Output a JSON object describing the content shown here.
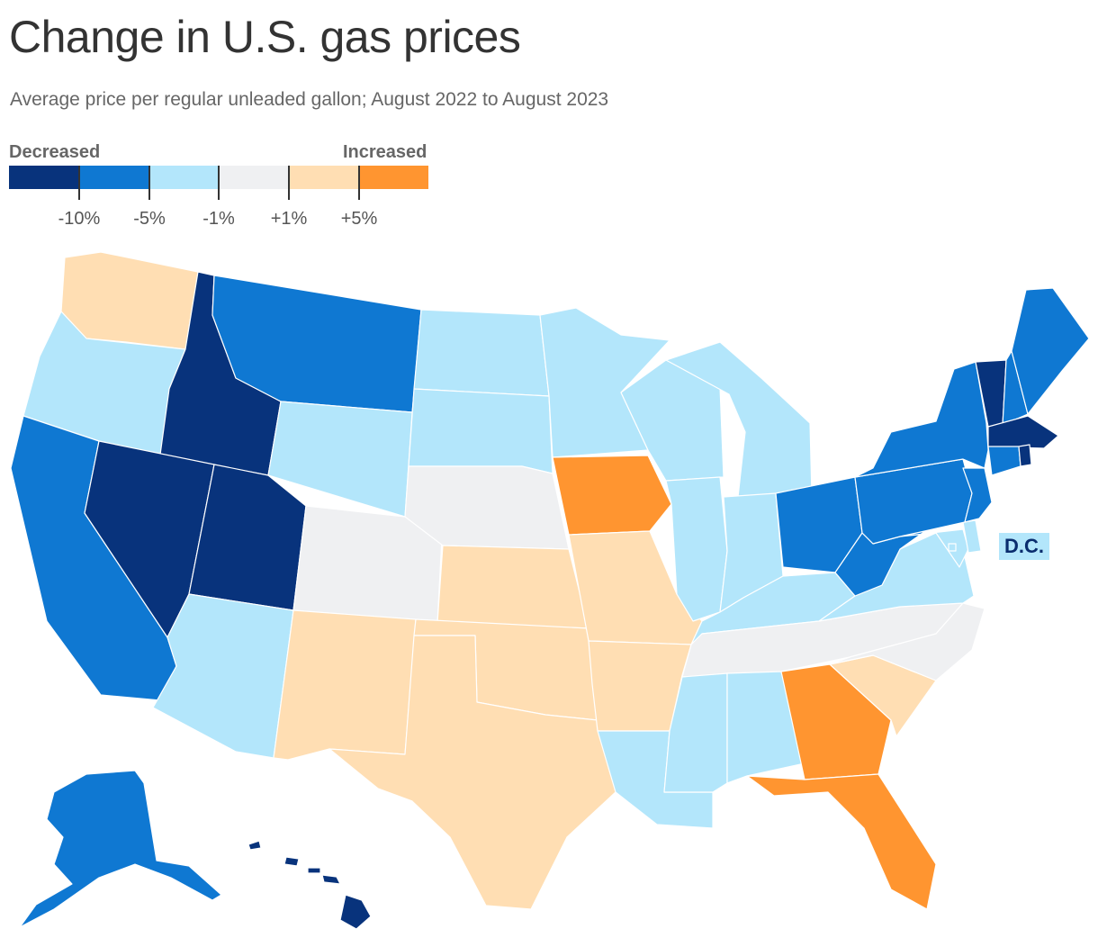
{
  "title": "Change in U.S. gas prices",
  "subtitle": "Average price per regular unleaded gallon; August 2022 to August 2023",
  "legend": {
    "decreased_label": "Decreased",
    "increased_label": "Increased",
    "bins": [
      {
        "name": "below -10%",
        "color": "#08337c"
      },
      {
        "name": "-10% to -5%",
        "color": "#0f78d2"
      },
      {
        "name": "-5% to -1%",
        "color": "#b3e6fb"
      },
      {
        "name": "-1% to +1%",
        "color": "#eff0f2"
      },
      {
        "name": "+1% to +5%",
        "color": "#ffdeb3"
      },
      {
        "name": "above +5%",
        "color": "#ff9530"
      }
    ],
    "ticks": [
      "-10%",
      "-5%",
      "-1%",
      "+1%",
      "+5%"
    ]
  },
  "dc_label": "D.C.",
  "chart_data": {
    "type": "choropleth",
    "title": "Change in U.S. gas prices",
    "subtitle": "Average price per regular unleaded gallon; August 2022 to August 2023",
    "bins": [
      "below -10%",
      "-10% to -5%",
      "-5% to -1%",
      "-1% to +1%",
      "+1% to +5%",
      "above +5%"
    ],
    "states": {
      "Washington": "+1% to +5%",
      "Oregon": "-5% to -1%",
      "California": "-10% to -5%",
      "Idaho": "below -10%",
      "Nevada": "below -10%",
      "Utah": "below -10%",
      "Arizona": "-5% to -1%",
      "Montana": "-10% to -5%",
      "Wyoming": "-5% to -1%",
      "Colorado": "-1% to +1%",
      "New Mexico": "+1% to +5%",
      "North Dakota": "-5% to -1%",
      "South Dakota": "-5% to -1%",
      "Nebraska": "-1% to +1%",
      "Kansas": "+1% to +5%",
      "Oklahoma": "+1% to +5%",
      "Texas": "+1% to +5%",
      "Minnesota": "-5% to -1%",
      "Iowa": "above +5%",
      "Missouri": "+1% to +5%",
      "Arkansas": "+1% to +5%",
      "Louisiana": "-5% to -1%",
      "Wisconsin": "-5% to -1%",
      "Illinois": "-5% to -1%",
      "Michigan": "-5% to -1%",
      "Indiana": "-5% to -1%",
      "Ohio": "-10% to -5%",
      "Kentucky": "-5% to -1%",
      "Tennessee": "-1% to +1%",
      "Mississippi": "-5% to -1%",
      "Alabama": "-5% to -1%",
      "Georgia": "above +5%",
      "Florida": "above +5%",
      "South Carolina": "+1% to +5%",
      "North Carolina": "-1% to +1%",
      "Virginia": "-5% to -1%",
      "West Virginia": "-10% to -5%",
      "Pennsylvania": "-10% to -5%",
      "New York": "-10% to -5%",
      "Vermont": "below -10%",
      "New Hampshire": "-10% to -5%",
      "Maine": "-10% to -5%",
      "Massachusetts": "below -10%",
      "Rhode Island": "below -10%",
      "Connecticut": "-10% to -5%",
      "New Jersey": "-10% to -5%",
      "Delaware": "-5% to -1%",
      "Maryland": "-5% to -1%",
      "District of Columbia": "-5% to -1%",
      "Alaska": "-10% to -5%",
      "Hawaii": "below -10%"
    }
  }
}
